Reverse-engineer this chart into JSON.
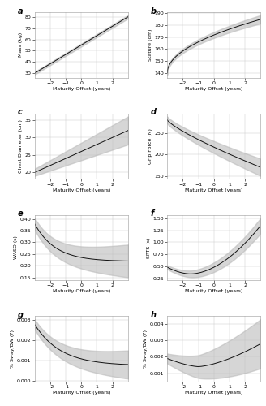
{
  "x_range": [
    -3,
    3
  ],
  "x_ticks": [
    -2,
    -1,
    0,
    1,
    2
  ],
  "x_label": "Maturity Offset (years)",
  "panels": [
    {
      "label": "a",
      "ylabel": "Mass (kg)",
      "curve_type": "linear_increase",
      "params": [
        30,
        80
      ],
      "ci_base": 1.2,
      "ci_spread": 0.3
    },
    {
      "label": "b",
      "ylabel": "Stature (cm)",
      "curve_type": "sqrt_increase",
      "params": [
        140,
        185
      ],
      "ci_base": 1.5,
      "ci_spread": 2.0
    },
    {
      "label": "c",
      "ylabel": "Chest Diameter (cm)",
      "curve_type": "linear_increase",
      "params": [
        20,
        32
      ],
      "ci_base": 1.0,
      "ci_spread": 3.0
    },
    {
      "label": "d",
      "ylabel": "Grip Force (N)",
      "curve_type": "linear_decrease_concave",
      "params": [
        280,
        170
      ],
      "ci_base": 8,
      "ci_spread": 12
    },
    {
      "label": "e",
      "ylabel": "WASO (s)",
      "curve_type": "exp_decay",
      "params": [
        0.38,
        0.22,
        1.5
      ],
      "ci_base": 0.025,
      "ci_spread": 0.045
    },
    {
      "label": "f",
      "ylabel": "SRTS (s)",
      "curve_type": "u_shape_deep",
      "params": [
        0.48,
        0.34,
        -1.5
      ],
      "ci_base": 0.04,
      "ci_spread": 0.12
    },
    {
      "label": "g",
      "ylabel": "% Sway/BW (?)",
      "curve_type": "exp_decay",
      "params": [
        0.0028,
        0.0008,
        1.2
      ],
      "ci_base": 0.00025,
      "ci_spread": 0.00045
    },
    {
      "label": "h",
      "ylabel": "% Sway/BW (?)",
      "curve_type": "u_shape_asym",
      "params": [
        0.0028,
        0.0014,
        -1.0
      ],
      "ci_base": 0.0003,
      "ci_spread": 0.0012
    }
  ],
  "line_color": "#111111",
  "ci_color": "#bbbbbb",
  "ci_alpha": 0.6,
  "bg_color": "#ffffff",
  "grid_color": "#cccccc",
  "tick_fontsize": 4.5,
  "label_fontsize": 4.5,
  "panel_label_fontsize": 7
}
